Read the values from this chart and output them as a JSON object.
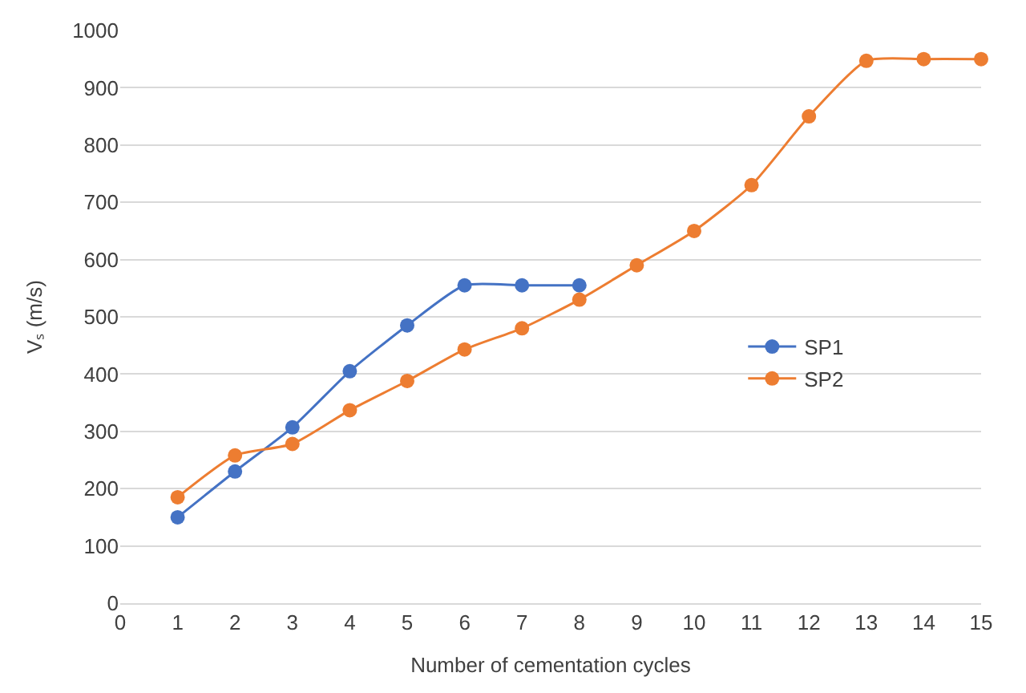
{
  "chart_data": {
    "type": "line",
    "xlabel": "Number of cementation cycles",
    "ylabel": "Vₛ (m/s)",
    "xlim": [
      0,
      15
    ],
    "xticks": [
      0,
      1,
      2,
      3,
      4,
      5,
      6,
      7,
      8,
      9,
      10,
      11,
      12,
      13,
      14,
      15
    ],
    "ylim": [
      0,
      1000
    ],
    "yticks": [
      0,
      100,
      200,
      300,
      400,
      500,
      600,
      700,
      800,
      900,
      1000
    ],
    "grid": "y",
    "legend": "right",
    "marker": "circle",
    "line_style": "solid",
    "series": [
      {
        "name": "SP1",
        "color": "#4472c4",
        "x": [
          1,
          2,
          3,
          4,
          5,
          6,
          7,
          8
        ],
        "values": [
          150,
          230,
          307,
          405,
          485,
          555,
          555,
          555
        ]
      },
      {
        "name": "SP2",
        "color": "#ed7d31",
        "x": [
          1,
          2,
          3,
          4,
          5,
          6,
          7,
          8,
          9,
          10,
          11,
          12,
          13,
          14,
          15
        ],
        "values": [
          185,
          258,
          278,
          337,
          388,
          443,
          480,
          530,
          590,
          650,
          730,
          850,
          947,
          950,
          950
        ]
      }
    ]
  }
}
